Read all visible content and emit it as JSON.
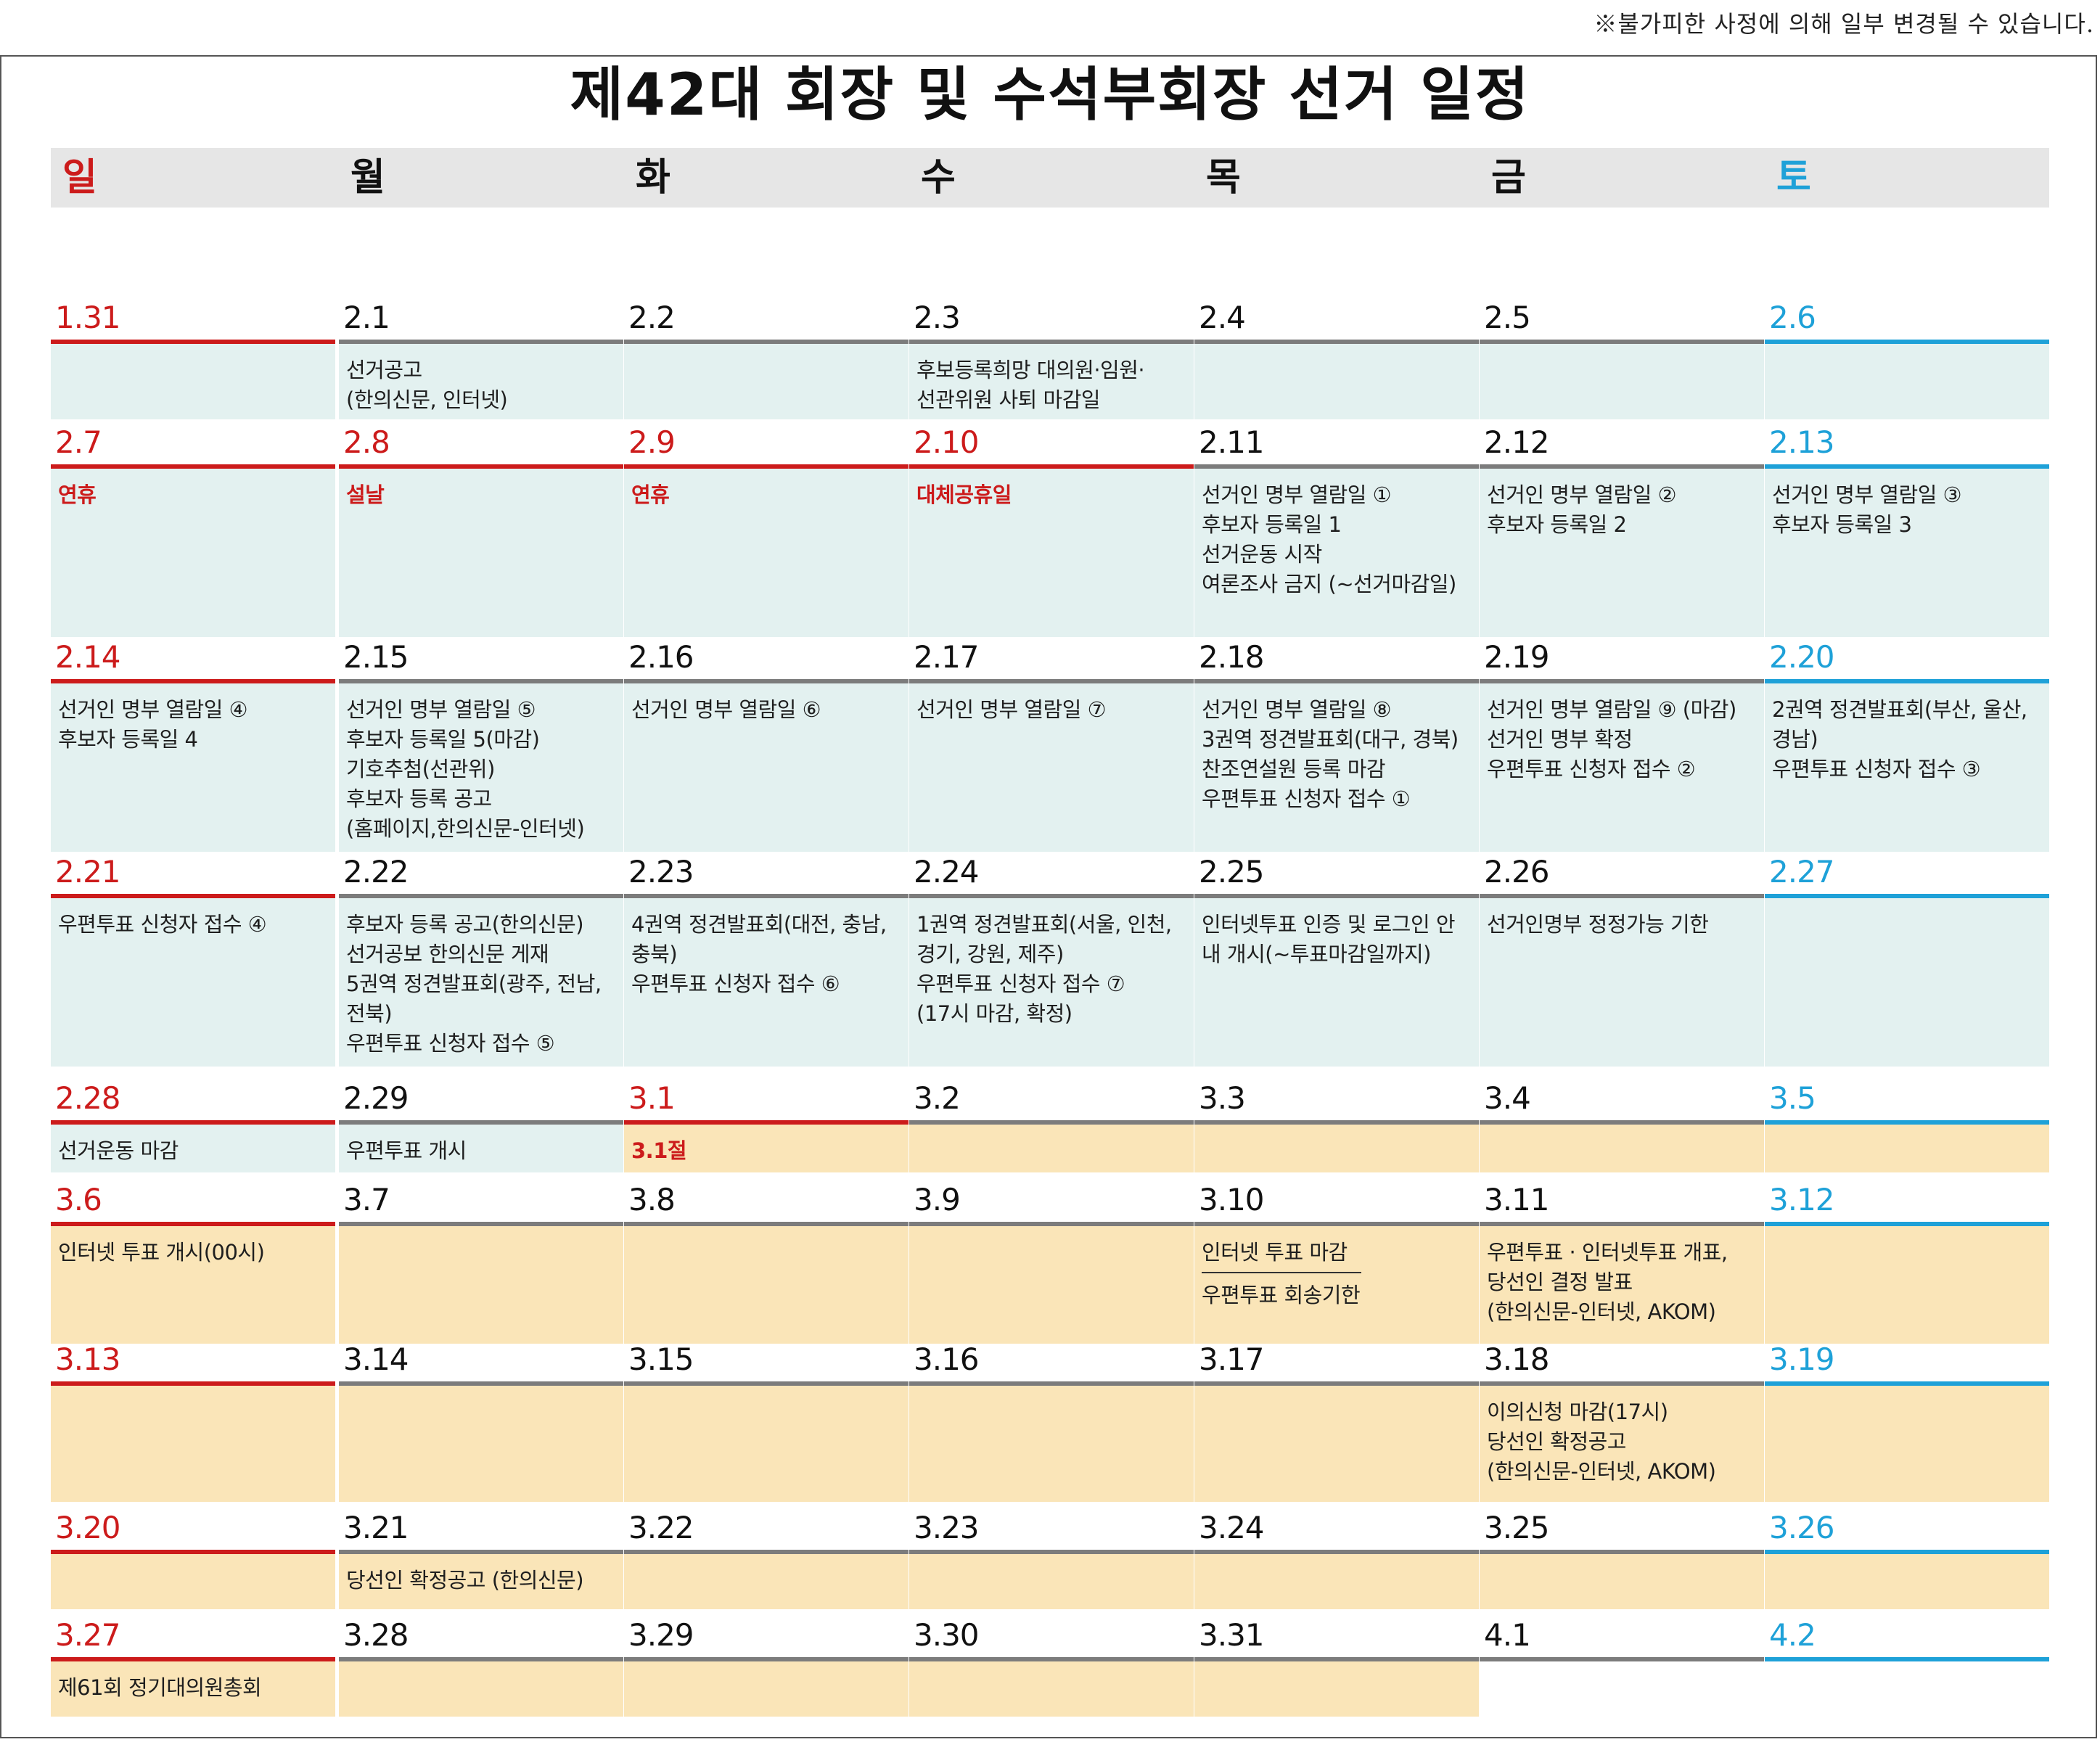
{
  "note": "※불가피한 사정에 의해 일부 변경될 수 있습니다.",
  "title": "제42대 회장 및 수석부회장 선거 일정",
  "weekdays": [
    "일",
    "월",
    "화",
    "수",
    "목",
    "금",
    "토"
  ],
  "weeks": [
    [
      {
        "date": "1.31",
        "bg": "blue",
        "lines": []
      },
      {
        "date": "2.1",
        "bg": "blue",
        "lines": [
          "선거공고",
          "(한의신문, 인터넷)"
        ]
      },
      {
        "date": "2.2",
        "bg": "blue",
        "lines": []
      },
      {
        "date": "2.3",
        "bg": "blue",
        "lines": [
          "후보등록희망 대의원·임원·",
          "선관위원 사퇴 마감일"
        ]
      },
      {
        "date": "2.4",
        "bg": "blue",
        "lines": []
      },
      {
        "date": "2.5",
        "bg": "blue",
        "lines": []
      },
      {
        "date": "2.6",
        "bg": "blue",
        "lines": []
      }
    ],
    [
      {
        "date": "2.7",
        "bg": "blue",
        "holiday": "연휴",
        "lines": []
      },
      {
        "date": "2.8",
        "bg": "blue",
        "holiday": "설날",
        "lines": []
      },
      {
        "date": "2.9",
        "bg": "blue",
        "holiday": "연휴",
        "lines": []
      },
      {
        "date": "2.10",
        "bg": "blue",
        "holiday": "대체공휴일",
        "lines": []
      },
      {
        "date": "2.11",
        "bg": "blue",
        "lines": [
          "선거인 명부 열람일 ①",
          "후보자 등록일 1",
          "선거운동 시작",
          "여론조사 금지 (~선거마감일)"
        ]
      },
      {
        "date": "2.12",
        "bg": "blue",
        "lines": [
          "선거인 명부 열람일 ②",
          "후보자 등록일 2"
        ]
      },
      {
        "date": "2.13",
        "bg": "blue",
        "lines": [
          "선거인 명부 열람일 ③",
          "후보자 등록일 3"
        ]
      }
    ],
    [
      {
        "date": "2.14",
        "bg": "blue",
        "lines": [
          "선거인 명부 열람일 ④",
          "후보자 등록일 4"
        ]
      },
      {
        "date": "2.15",
        "bg": "blue",
        "lines": [
          "선거인 명부 열람일 ⑤",
          "후보자 등록일 5(마감)",
          "기호추첨(선관위)",
          "후보자 등록 공고",
          "(홈페이지,한의신문-인터넷)"
        ]
      },
      {
        "date": "2.16",
        "bg": "blue",
        "lines": [
          "선거인 명부 열람일 ⑥"
        ]
      },
      {
        "date": "2.17",
        "bg": "blue",
        "lines": [
          "선거인 명부 열람일 ⑦"
        ]
      },
      {
        "date": "2.18",
        "bg": "blue",
        "lines": [
          "선거인 명부 열람일 ⑧",
          "3권역 정견발표회(대구, 경북)",
          "찬조연설원 등록 마감",
          "우편투표 신청자 접수 ①"
        ]
      },
      {
        "date": "2.19",
        "bg": "blue",
        "lines": [
          "선거인 명부 열람일 ⑨ (마감)",
          "선거인 명부 확정",
          "우편투표 신청자 접수 ②"
        ]
      },
      {
        "date": "2.20",
        "bg": "blue",
        "lines": [
          "2권역 정견발표회(부산, 울산, 경남)",
          "우편투표 신청자 접수 ③"
        ]
      }
    ],
    [
      {
        "date": "2.21",
        "bg": "blue",
        "lines": [
          "우편투표 신청자 접수 ④"
        ]
      },
      {
        "date": "2.22",
        "bg": "blue",
        "lines": [
          "후보자 등록 공고(한의신문)",
          "선거공보 한의신문 게재",
          "5권역 정견발표회(광주, 전남, 전북)",
          "우편투표 신청자 접수 ⑤"
        ]
      },
      {
        "date": "2.23",
        "bg": "blue",
        "lines": [
          "4권역 정견발표회(대전,  충남, 충북)",
          "우편투표 신청자 접수 ⑥"
        ]
      },
      {
        "date": "2.24",
        "bg": "blue",
        "lines": [
          "1권역 정견발표회(서울, 인천, 경기, 강원, 제주)",
          "우편투표 신청자 접수 ⑦",
          "(17시 마감, 확정)"
        ]
      },
      {
        "date": "2.25",
        "bg": "blue",
        "lines": [
          "인터넷투표 인증 및 로그인 안내 개시(~투표마감일까지)"
        ]
      },
      {
        "date": "2.26",
        "bg": "blue",
        "lines": [
          "선거인명부 정정가능 기한"
        ]
      },
      {
        "date": "2.27",
        "bg": "blue",
        "lines": []
      }
    ],
    [
      {
        "date": "2.28",
        "bg": "blue",
        "lines": [
          "선거운동 마감"
        ]
      },
      {
        "date": "2.29",
        "bg": "blue",
        "lines": [
          "우편투표 개시"
        ]
      },
      {
        "date": "3.1",
        "bg": "yellow",
        "holiday": "3.1절",
        "lines": []
      },
      {
        "date": "3.2",
        "bg": "yellow",
        "lines": []
      },
      {
        "date": "3.3",
        "bg": "yellow",
        "lines": []
      },
      {
        "date": "3.4",
        "bg": "yellow",
        "lines": []
      },
      {
        "date": "3.5",
        "bg": "yellow",
        "lines": []
      }
    ],
    [
      {
        "date": "3.6",
        "bg": "yellow",
        "lines": [
          "인터넷 투표 개시(00시)"
        ]
      },
      {
        "date": "3.7",
        "bg": "yellow",
        "lines": []
      },
      {
        "date": "3.8",
        "bg": "yellow",
        "lines": []
      },
      {
        "date": "3.9",
        "bg": "yellow",
        "lines": []
      },
      {
        "date": "3.10",
        "bg": "yellow",
        "lines": [
          "인터넷 투표 마감",
          "우편투표 회송기한"
        ],
        "separator": true
      },
      {
        "date": "3.11",
        "bg": "yellow",
        "lines": [
          "우편투표 · 인터넷투표 개표,",
          "당선인 결정 발표",
          "(한의신문-인터넷, AKOM)"
        ]
      },
      {
        "date": "3.12",
        "bg": "yellow",
        "lines": []
      }
    ],
    [
      {
        "date": "3.13",
        "bg": "yellow",
        "lines": []
      },
      {
        "date": "3.14",
        "bg": "yellow",
        "lines": []
      },
      {
        "date": "3.15",
        "bg": "yellow",
        "lines": []
      },
      {
        "date": "3.16",
        "bg": "yellow",
        "lines": []
      },
      {
        "date": "3.17",
        "bg": "yellow",
        "lines": []
      },
      {
        "date": "3.18",
        "bg": "yellow",
        "lines": [
          "이의신청 마감(17시)",
          "당선인 확정공고",
          "(한의신문-인터넷, AKOM)"
        ]
      },
      {
        "date": "3.19",
        "bg": "yellow",
        "lines": []
      }
    ],
    [
      {
        "date": "3.20",
        "bg": "yellow",
        "lines": []
      },
      {
        "date": "3.21",
        "bg": "yellow",
        "lines": [
          "당선인 확정공고 (한의신문)"
        ]
      },
      {
        "date": "3.22",
        "bg": "yellow",
        "lines": []
      },
      {
        "date": "3.23",
        "bg": "yellow",
        "lines": []
      },
      {
        "date": "3.24",
        "bg": "yellow",
        "lines": []
      },
      {
        "date": "3.25",
        "bg": "yellow",
        "lines": []
      },
      {
        "date": "3.26",
        "bg": "yellow",
        "lines": []
      }
    ],
    [
      {
        "date": "3.27",
        "bg": "yellow",
        "lines": [
          "제61회 정기대의원총회"
        ]
      },
      {
        "date": "3.28",
        "bg": "yellow",
        "lines": []
      },
      {
        "date": "3.29",
        "bg": "yellow",
        "lines": []
      },
      {
        "date": "3.30",
        "bg": "yellow",
        "lines": []
      },
      {
        "date": "3.31",
        "bg": "yellow",
        "lines": []
      },
      {
        "date": "4.1",
        "bg": "none",
        "lines": []
      },
      {
        "date": "4.2",
        "bg": "none",
        "lines": []
      }
    ]
  ]
}
